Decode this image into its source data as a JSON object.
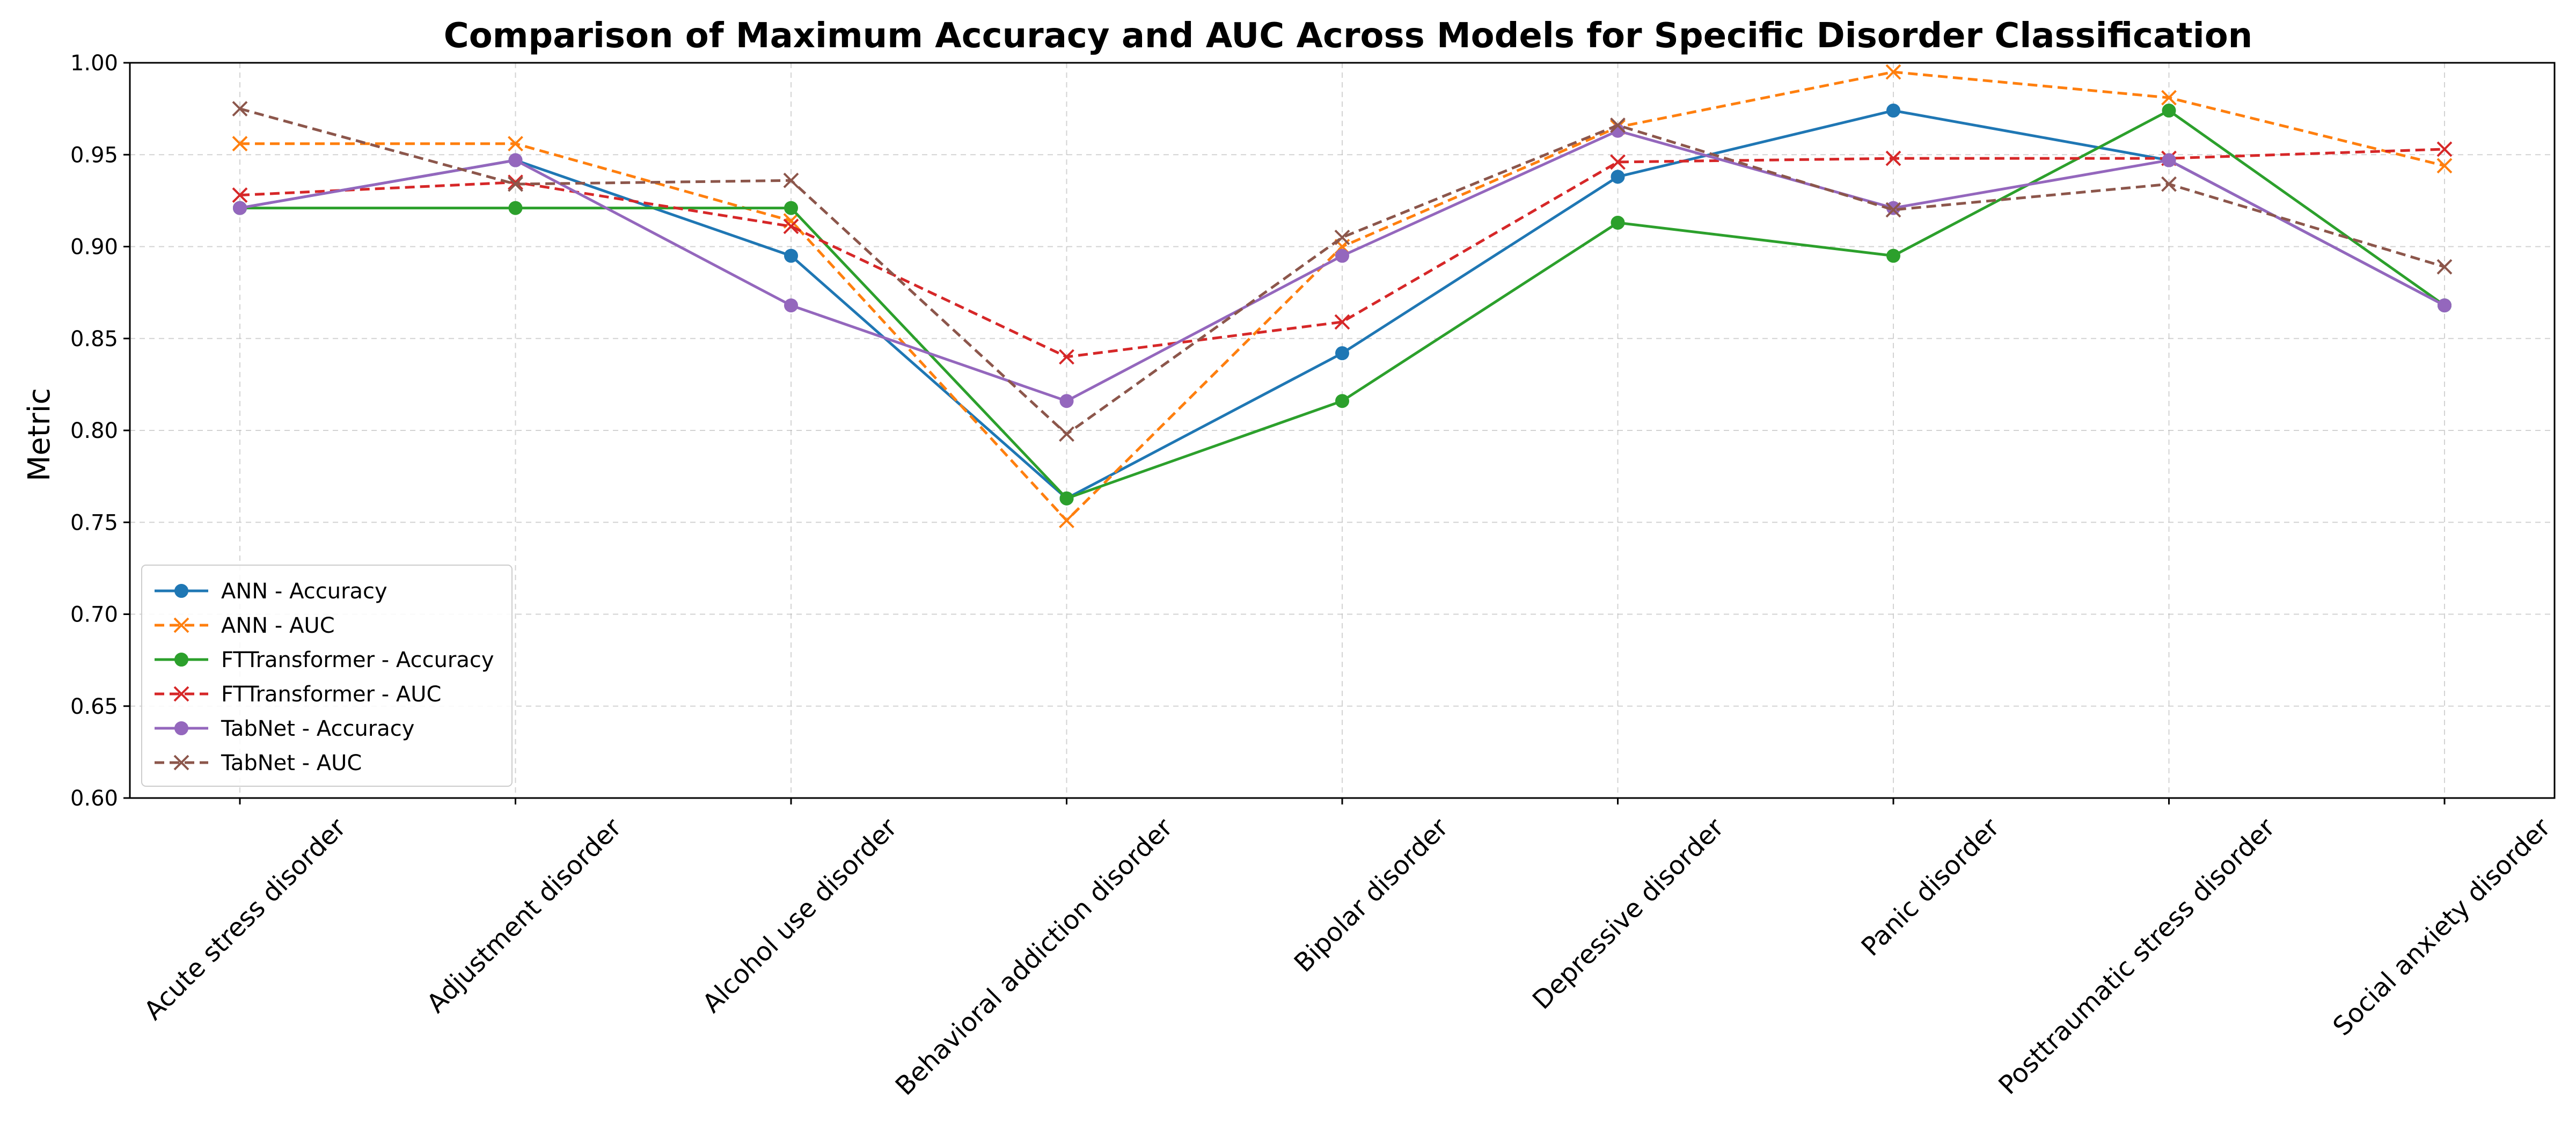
{
  "chart_data": {
    "type": "line",
    "title": "Comparison of Maximum Accuracy and AUC Across Models for Specific Disorder Classification",
    "xlabel": "",
    "ylabel": "Metric",
    "ylim": [
      0.6,
      1.0
    ],
    "yticks": [
      "0.60",
      "0.65",
      "0.70",
      "0.75",
      "0.80",
      "0.85",
      "0.90",
      "0.95",
      "1.00"
    ],
    "grid": true,
    "legend_position": "lower-left",
    "categories": [
      "Acute stress disorder",
      "Adjustment disorder",
      "Alcohol use disorder",
      "Behavioral addiction disorder",
      "Bipolar disorder",
      "Depressive disorder",
      "Panic disorder",
      "Posttraumatic stress disorder",
      "Social anxiety disorder"
    ],
    "series": [
      {
        "name": "ANN - Accuracy",
        "color": "#1f77b4",
        "dash": "solid",
        "marker": "circle",
        "values": [
          0.921,
          0.947,
          0.895,
          0.763,
          0.842,
          0.938,
          0.974,
          0.947,
          0.868
        ]
      },
      {
        "name": "ANN - AUC",
        "color": "#ff7f0e",
        "dash": "dashed",
        "marker": "x",
        "values": [
          0.956,
          0.956,
          0.914,
          0.751,
          0.9,
          0.965,
          0.995,
          0.981,
          0.944
        ]
      },
      {
        "name": "FTTransformer - Accuracy",
        "color": "#2ca02c",
        "dash": "solid",
        "marker": "circle",
        "values": [
          0.921,
          0.921,
          0.921,
          0.763,
          0.816,
          0.913,
          0.895,
          0.974,
          0.868
        ]
      },
      {
        "name": "FTTransformer - AUC",
        "color": "#d62728",
        "dash": "dashed",
        "marker": "x",
        "values": [
          0.928,
          0.935,
          0.911,
          0.84,
          0.859,
          0.946,
          0.948,
          0.948,
          0.953
        ]
      },
      {
        "name": "TabNet - Accuracy",
        "color": "#9467bd",
        "dash": "solid",
        "marker": "circle",
        "values": [
          0.921,
          0.947,
          0.868,
          0.816,
          0.895,
          0.963,
          0.921,
          0.947,
          0.868
        ]
      },
      {
        "name": "TabNet - AUC",
        "color": "#8c564b",
        "dash": "dashed",
        "marker": "x",
        "values": [
          0.975,
          0.934,
          0.936,
          0.798,
          0.905,
          0.966,
          0.92,
          0.934,
          0.889
        ]
      }
    ]
  }
}
